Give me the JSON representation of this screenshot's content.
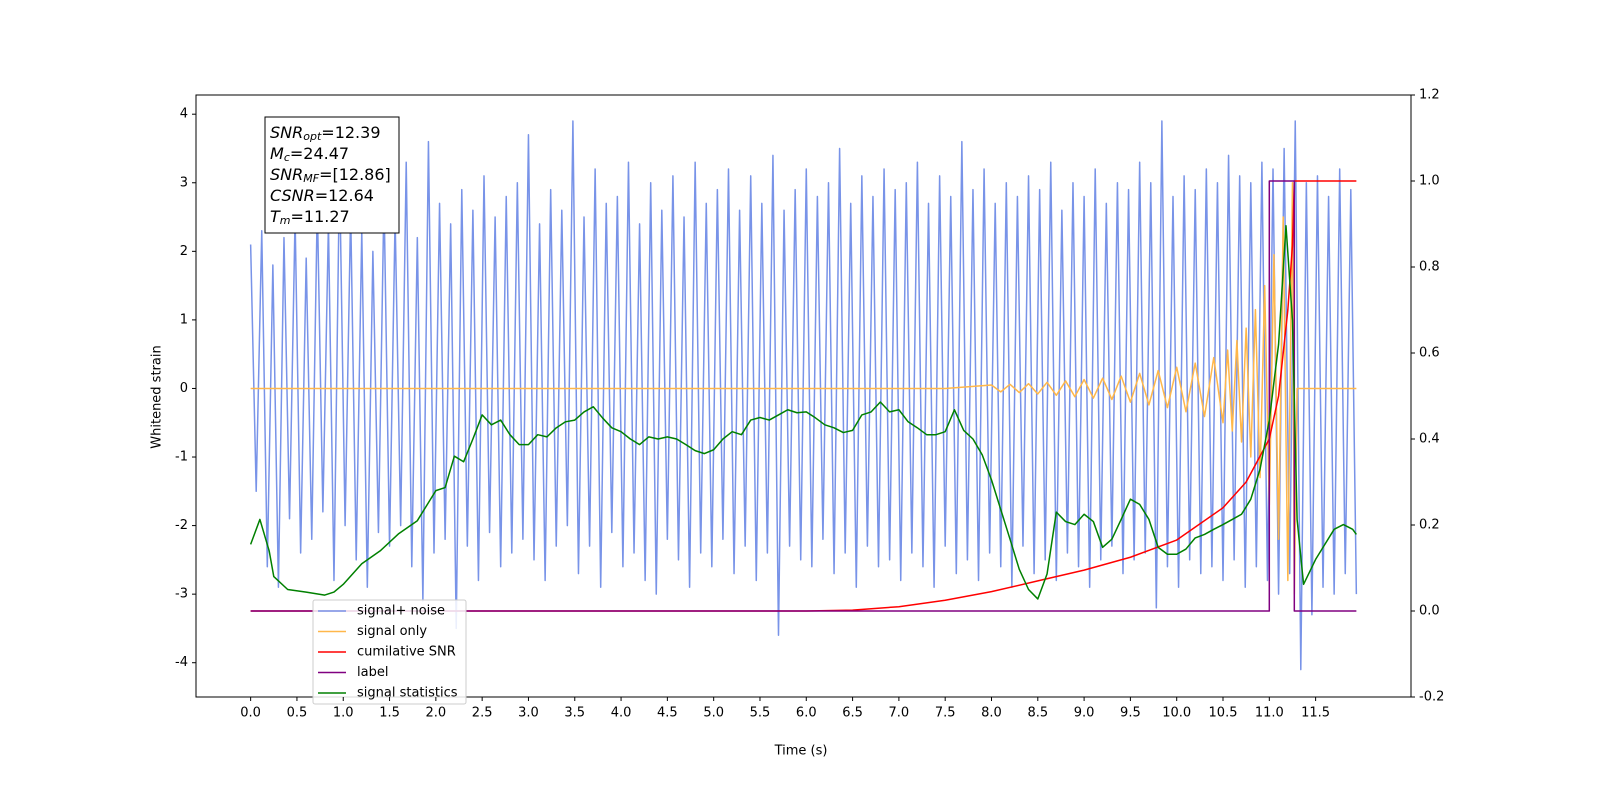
{
  "chart_data": {
    "type": "line",
    "xlabel": "Time (s)",
    "ylabel": "Whitened strain",
    "xlim": [
      -0.59,
      12.53
    ],
    "ylim": [
      -4.5,
      4.28
    ],
    "y2lim": [
      -0.2,
      1.2
    ],
    "xticks": [
      {
        "value": 0,
        "label": "0.0"
      },
      0.5,
      {
        "value": 1,
        "label": "1.0"
      },
      1.5,
      {
        "value": 2,
        "label": "2.0"
      },
      2.5,
      {
        "value": 3,
        "label": "3.0"
      },
      3.5,
      {
        "value": 4,
        "label": "4.0"
      },
      4.5,
      {
        "value": 5,
        "label": "5.0"
      },
      5.5,
      {
        "value": 6,
        "label": "6.0"
      },
      6.5,
      {
        "value": 7,
        "label": "7.0"
      },
      7.5,
      {
        "value": 8,
        "label": "8.0"
      },
      8.5,
      {
        "value": 9,
        "label": "9.0"
      },
      9.5,
      {
        "value": 10,
        "label": "10.0"
      },
      10.5,
      {
        "value": 11,
        "label": "11.0"
      },
      11.5
    ],
    "yticks": [
      -4,
      -3,
      -2,
      -1,
      0,
      1,
      2,
      3,
      4
    ],
    "y2ticks": [
      -0.2,
      {
        "value": 0,
        "label": "0.0"
      },
      0.2,
      0.4,
      0.6,
      0.8,
      {
        "value": 1,
        "label": "1.0"
      },
      1.2
    ],
    "legend": "lower left",
    "stats": [
      {
        "name": "SNR",
        "sub": "opt",
        "text": "=12.39"
      },
      {
        "name": "M",
        "sub": "c",
        "text": "=24.47"
      },
      {
        "name": "SNR",
        "sub": "MF",
        "text": "=[12.86]"
      },
      {
        "name": "CSNR",
        "text": "=12.64"
      },
      {
        "name": "T",
        "sub": "m",
        "text": "=11.27"
      }
    ],
    "series": [
      {
        "name": "signal+ noise",
        "color": "#7893e8",
        "axis": "y",
        "x": [
          0,
          0.06,
          0.12,
          0.18,
          0.24,
          0.3,
          0.36,
          0.42,
          0.48,
          0.54,
          0.6,
          0.66,
          0.72,
          0.78,
          0.84,
          0.9,
          0.96,
          1.02,
          1.08,
          1.14,
          1.2,
          1.26,
          1.32,
          1.38,
          1.44,
          1.5,
          1.56,
          1.62,
          1.68,
          1.74,
          1.8,
          1.86,
          1.92,
          1.98,
          2.04,
          2.1,
          2.16,
          2.22,
          2.28,
          2.34,
          2.4,
          2.46,
          2.52,
          2.58,
          2.64,
          2.7,
          2.76,
          2.82,
          2.88,
          2.94,
          3.0,
          3.06,
          3.12,
          3.18,
          3.24,
          3.3,
          3.36,
          3.42,
          3.48,
          3.54,
          3.6,
          3.66,
          3.72,
          3.78,
          3.84,
          3.9,
          3.96,
          4.02,
          4.08,
          4.14,
          4.2,
          4.26,
          4.32,
          4.38,
          4.44,
          4.5,
          4.56,
          4.62,
          4.68,
          4.74,
          4.8,
          4.86,
          4.92,
          4.98,
          5.04,
          5.1,
          5.16,
          5.22,
          5.28,
          5.34,
          5.4,
          5.46,
          5.52,
          5.58,
          5.64,
          5.7,
          5.76,
          5.82,
          5.88,
          5.94,
          6.0,
          6.06,
          6.12,
          6.18,
          6.24,
          6.3,
          6.36,
          6.42,
          6.48,
          6.54,
          6.6,
          6.66,
          6.72,
          6.78,
          6.84,
          6.9,
          6.96,
          7.02,
          7.08,
          7.14,
          7.2,
          7.26,
          7.32,
          7.38,
          7.44,
          7.5,
          7.56,
          7.62,
          7.68,
          7.74,
          7.8,
          7.86,
          7.92,
          7.98,
          8.04,
          8.1,
          8.16,
          8.22,
          8.28,
          8.34,
          8.4,
          8.46,
          8.52,
          8.58,
          8.64,
          8.7,
          8.76,
          8.82,
          8.88,
          8.94,
          9.0,
          9.06,
          9.12,
          9.18,
          9.24,
          9.3,
          9.36,
          9.42,
          9.48,
          9.54,
          9.6,
          9.66,
          9.72,
          9.78,
          9.84,
          9.9,
          9.96,
          10.02,
          10.08,
          10.14,
          10.2,
          10.26,
          10.32,
          10.38,
          10.44,
          10.5,
          10.56,
          10.62,
          10.68,
          10.74,
          10.8,
          10.86,
          10.92,
          10.98,
          11.04,
          11.1,
          11.16,
          11.22,
          11.28,
          11.34,
          11.4,
          11.46,
          11.52,
          11.58,
          11.64,
          11.7,
          11.76,
          11.82,
          11.88,
          11.94
        ],
        "values": [
          2.1,
          -1.5,
          2.3,
          -2.6,
          1.8,
          -2.9,
          2.2,
          -1.9,
          2.5,
          -2.4,
          1.9,
          -2.2,
          2.7,
          -1.8,
          2.4,
          -2.8,
          3.2,
          -2.0,
          2.6,
          -2.5,
          2.3,
          -2.9,
          2.0,
          -2.1,
          2.8,
          -2.3,
          2.5,
          -2.0,
          3.3,
          -2.6,
          2.2,
          -3.1,
          3.6,
          -2.4,
          2.7,
          -2.2,
          2.4,
          -3.5,
          2.9,
          -2.3,
          2.6,
          -2.8,
          3.1,
          -2.1,
          2.5,
          -2.6,
          2.8,
          -2.4,
          3.0,
          -2.2,
          3.7,
          -2.5,
          2.4,
          -2.8,
          2.9,
          -2.3,
          2.6,
          -2.0,
          3.9,
          -2.7,
          2.5,
          -2.3,
          3.2,
          -2.9,
          2.7,
          -2.1,
          2.8,
          -2.6,
          3.3,
          -2.4,
          2.4,
          -2.8,
          3.0,
          -3.0,
          2.6,
          -2.2,
          3.1,
          -2.5,
          2.5,
          -2.9,
          3.3,
          -2.4,
          2.7,
          -2.6,
          2.9,
          -2.2,
          3.2,
          -2.7,
          2.6,
          -2.3,
          3.1,
          -2.8,
          2.7,
          -2.4,
          3.4,
          -3.6,
          2.6,
          -2.3,
          2.9,
          -2.5,
          3.2,
          -2.6,
          2.8,
          -2.2,
          3.0,
          -2.7,
          3.5,
          -2.4,
          2.7,
          -2.9,
          3.1,
          -2.3,
          2.8,
          -2.6,
          3.2,
          -2.5,
          2.9,
          -2.8,
          3.0,
          -2.4,
          3.3,
          -2.6,
          2.7,
          -2.9,
          3.1,
          -2.3,
          2.8,
          -2.7,
          3.6,
          -2.5,
          2.9,
          -2.8,
          3.2,
          -2.4,
          2.7,
          -2.6,
          3.0,
          -2.9,
          2.8,
          -2.3,
          3.1,
          -2.7,
          2.9,
          -2.5,
          3.3,
          -2.8,
          2.6,
          -2.4,
          3.0,
          -2.6,
          2.8,
          -2.9,
          3.2,
          -2.5,
          2.7,
          -2.3,
          3.0,
          -2.7,
          2.9,
          -2.5,
          3.3,
          -2.4,
          3.0,
          -3.2,
          3.9,
          -2.6,
          2.8,
          -2.9,
          3.1,
          -2.5,
          2.9,
          -2.7,
          3.2,
          -2.6,
          3.0,
          -2.8,
          3.4,
          -2.5,
          3.1,
          -2.9,
          3.0,
          -2.6,
          3.3,
          -2.8,
          3.2,
          -3.0,
          3.5,
          -2.7,
          3.9,
          -4.1,
          3.0,
          -3.3,
          3.1,
          -2.9,
          2.8,
          -3.0,
          3.2,
          -2.7,
          2.9,
          -3.0
        ]
      },
      {
        "name": "signal only",
        "color": "#ffb74a",
        "axis": "y",
        "x": [
          0,
          7.5,
          8.0,
          8.1,
          8.2,
          8.3,
          8.4,
          8.5,
          8.6,
          8.7,
          8.8,
          8.9,
          9.0,
          9.1,
          9.2,
          9.3,
          9.4,
          9.5,
          9.6,
          9.7,
          9.8,
          9.9,
          10.0,
          10.1,
          10.2,
          10.3,
          10.4,
          10.5,
          10.55,
          10.6,
          10.65,
          10.7,
          10.75,
          10.8,
          10.85,
          10.9,
          10.95,
          11.0,
          11.05,
          11.1,
          11.15,
          11.2,
          11.25,
          11.27,
          11.3,
          11.94
        ],
        "values": [
          0,
          0,
          0.05,
          -0.05,
          0.06,
          -0.06,
          0.07,
          -0.08,
          0.09,
          -0.1,
          0.11,
          -0.12,
          0.13,
          -0.14,
          0.15,
          -0.16,
          0.18,
          -0.2,
          0.22,
          -0.24,
          0.26,
          -0.28,
          0.31,
          -0.34,
          0.37,
          -0.41,
          0.45,
          -0.5,
          0.56,
          -0.62,
          0.7,
          -0.78,
          0.88,
          -1.0,
          1.15,
          -1.3,
          1.5,
          -1.7,
          1.95,
          -2.2,
          2.5,
          -2.8,
          3.0,
          -3.0,
          0,
          0
        ]
      },
      {
        "name": "cumilative SNR",
        "color": "#ff0000",
        "axis": "y2",
        "x": [
          0,
          6.0,
          6.5,
          7.0,
          7.5,
          8.0,
          8.5,
          9.0,
          9.5,
          10.0,
          10.5,
          10.75,
          11.0,
          11.1,
          11.2,
          11.25,
          11.27,
          11.94
        ],
        "values": [
          0,
          0,
          0.002,
          0.01,
          0.025,
          0.045,
          0.07,
          0.095,
          0.125,
          0.165,
          0.24,
          0.3,
          0.4,
          0.5,
          0.7,
          0.85,
          1.0,
          1.0
        ]
      },
      {
        "name": "label",
        "color": "#800080",
        "axis": "y2",
        "x": [
          0,
          11.0,
          11.0,
          11.27,
          11.27,
          11.94
        ],
        "values": [
          0,
          0,
          1,
          1,
          0,
          0
        ]
      },
      {
        "name": "signal statistics",
        "color": "#008000",
        "axis": "y2",
        "x": [
          0,
          0.1,
          0.2,
          0.25,
          0.4,
          0.6,
          0.8,
          0.9,
          1.0,
          1.2,
          1.4,
          1.6,
          1.8,
          2.0,
          2.1,
          2.2,
          2.3,
          2.4,
          2.5,
          2.6,
          2.7,
          2.8,
          2.9,
          3.0,
          3.1,
          3.2,
          3.3,
          3.4,
          3.5,
          3.6,
          3.7,
          3.8,
          3.9,
          4.0,
          4.1,
          4.2,
          4.3,
          4.4,
          4.5,
          4.6,
          4.7,
          4.8,
          4.9,
          5.0,
          5.1,
          5.2,
          5.3,
          5.4,
          5.5,
          5.6,
          5.7,
          5.8,
          5.9,
          6.0,
          6.1,
          6.2,
          6.3,
          6.4,
          6.5,
          6.6,
          6.7,
          6.8,
          6.9,
          7.0,
          7.1,
          7.2,
          7.3,
          7.4,
          7.5,
          7.6,
          7.7,
          7.8,
          7.9,
          8.0,
          8.1,
          8.2,
          8.3,
          8.4,
          8.5,
          8.6,
          8.7,
          8.8,
          8.9,
          9.0,
          9.1,
          9.2,
          9.3,
          9.4,
          9.5,
          9.6,
          9.7,
          9.8,
          9.9,
          10.0,
          10.1,
          10.2,
          10.3,
          10.4,
          10.5,
          10.6,
          10.7,
          10.8,
          10.9,
          11.0,
          11.1,
          11.18,
          11.25,
          11.3,
          11.37,
          11.5,
          11.6,
          11.7,
          11.8,
          11.9,
          11.94
        ],
        "values": [
          0.155,
          0.213,
          0.14,
          0.08,
          0.05,
          0.044,
          0.037,
          0.044,
          0.062,
          0.11,
          0.14,
          0.18,
          0.21,
          0.28,
          0.287,
          0.36,
          0.347,
          0.4,
          0.456,
          0.433,
          0.444,
          0.41,
          0.387,
          0.387,
          0.41,
          0.405,
          0.426,
          0.44,
          0.444,
          0.463,
          0.475,
          0.449,
          0.426,
          0.417,
          0.4,
          0.387,
          0.405,
          0.4,
          0.405,
          0.4,
          0.387,
          0.373,
          0.366,
          0.375,
          0.4,
          0.417,
          0.41,
          0.444,
          0.45,
          0.444,
          0.456,
          0.468,
          0.461,
          0.463,
          0.449,
          0.433,
          0.426,
          0.415,
          0.42,
          0.456,
          0.463,
          0.486,
          0.463,
          0.468,
          0.44,
          0.426,
          0.41,
          0.41,
          0.417,
          0.468,
          0.42,
          0.4,
          0.363,
          0.305,
          0.236,
          0.167,
          0.097,
          0.05,
          0.028,
          0.086,
          0.23,
          0.208,
          0.201,
          0.225,
          0.208,
          0.148,
          0.167,
          0.213,
          0.26,
          0.248,
          0.213,
          0.148,
          0.132,
          0.132,
          0.144,
          0.17,
          0.178,
          0.19,
          0.201,
          0.213,
          0.225,
          0.26,
          0.33,
          0.444,
          0.62,
          0.896,
          0.676,
          0.213,
          0.062,
          0.12,
          0.155,
          0.19,
          0.201,
          0.19,
          0.178
        ]
      }
    ]
  }
}
